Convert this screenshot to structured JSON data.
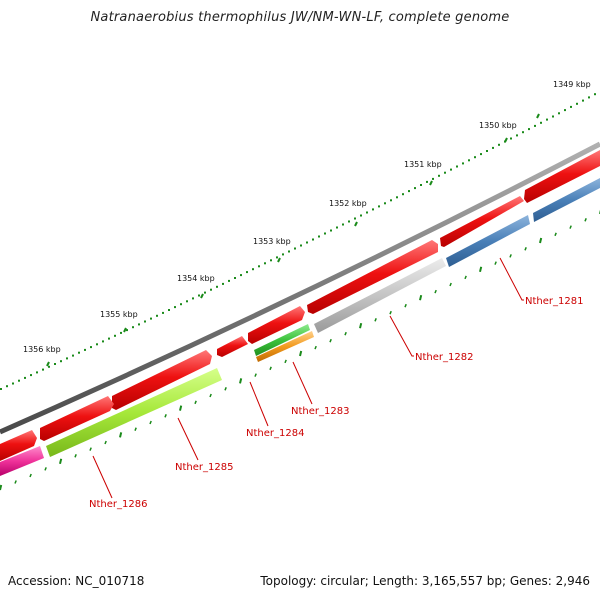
{
  "title": "Natranaerobius thermophilus JW/NM-WN-LF, complete genome",
  "footer": {
    "accession": "Accession: NC_010718",
    "topology": "Topology: circular; Length: 3,165,557 bp; Genes: 2,946"
  },
  "ruler": {
    "labels": [
      "1349 kbp",
      "1350 kbp",
      "1351 kbp",
      "1352 kbp",
      "1353 kbp",
      "1354 kbp",
      "1355 kbp",
      "1356 kbp"
    ]
  },
  "colors": {
    "backbone": "#7a7a7a",
    "cds_red": "#ee1111",
    "gene_label": "#cc0000",
    "tick": "#1a8a1a",
    "blue": "#4a80b8",
    "grey": "#c4c4c4",
    "lime": "#a6e83a",
    "green": "#3cc23c",
    "orange": "#f29a1e",
    "magenta": "#f0329a"
  },
  "genes": [
    {
      "name": "Nther_1281",
      "color_key": "blue"
    },
    {
      "name": "Nther_1282",
      "color_key": "grey"
    },
    {
      "name": "Nther_1283",
      "color_key": "green"
    },
    {
      "name": "Nther_1284",
      "color_key": "cds_red"
    },
    {
      "name": "Nther_1285",
      "color_key": "lime"
    },
    {
      "name": "Nther_1286",
      "color_key": "magenta"
    }
  ]
}
